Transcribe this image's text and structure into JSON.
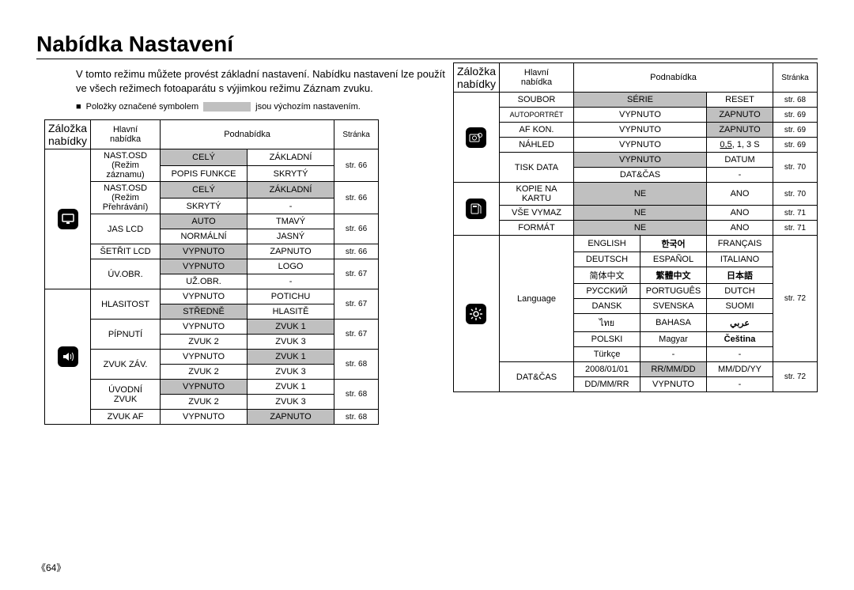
{
  "title": "Nabídka Nastavení",
  "intro": "V tomto režimu můžete provést základní nastavení. Nabídku nastavení lze použít ve všech režimech fotoaparátu s výjimkou režimu Záznam zvuku.",
  "note_pre": "Položky označené symbolem",
  "note_post": "jsou výchozím nastavením.",
  "page_num": "《64》",
  "hdr": {
    "tab": "Záložka\nnabídky",
    "main": "Hlavní\nnabídka",
    "sub": "Podnabídka",
    "page": "Stránka"
  },
  "left": {
    "icon1": "display",
    "icon2": "sound",
    "rows1": [
      {
        "m": "NAST.OSD\n(Režim\nzáznamu)",
        "rs": 2,
        "a": "CELÝ",
        "ah": true,
        "b": "ZÁKLADNÍ",
        "p": "str. 66",
        "ps": 2
      },
      {
        "a": "POPIS FUNKCE",
        "b": "SKRYTÝ"
      },
      {
        "m": "NAST.OSD\n(Režim\nPřehrávání)",
        "rs": 2,
        "a": "CELÝ",
        "ah": true,
        "b": "ZÁKLADNÍ",
        "bh": true,
        "p": "str. 66",
        "ps": 2
      },
      {
        "a": "SKRYTÝ",
        "b": "-"
      },
      {
        "m": "JAS LCD",
        "rs": 2,
        "a": "AUTO",
        "ah": true,
        "b": "TMAVÝ",
        "p": "str. 66",
        "ps": 2
      },
      {
        "a": "NORMÁLNÍ",
        "b": "JASNÝ"
      },
      {
        "m": "ŠETŘIT LCD",
        "rs": 1,
        "a": "VYPNUTO",
        "ah": true,
        "b": "ZAPNUTO",
        "p": "str. 66",
        "ps": 1
      },
      {
        "m": "ÚV.OBR.",
        "rs": 2,
        "a": "VYPNUTO",
        "ah": true,
        "b": "LOGO",
        "p": "str. 67",
        "ps": 2
      },
      {
        "a": "UŽ.OBR.",
        "b": "-"
      }
    ],
    "rows2": [
      {
        "m": "HLASITOST",
        "rs": 2,
        "a": "VYPNUTO",
        "b": "POTICHU",
        "p": "str. 67",
        "ps": 2
      },
      {
        "a": "STŘEDNĚ",
        "ah": true,
        "b": "HLASITĚ"
      },
      {
        "m": "PÍPNUTÍ",
        "rs": 2,
        "a": "VYPNUTO",
        "b": "ZVUK 1",
        "bh": true,
        "p": "str. 67",
        "ps": 2
      },
      {
        "a": "ZVUK 2",
        "b": "ZVUK 3"
      },
      {
        "m": "ZVUK ZÁV.",
        "rs": 2,
        "a": "VYPNUTO",
        "b": "ZVUK 1",
        "bh": true,
        "p": "str. 68",
        "ps": 2
      },
      {
        "a": "ZVUK 2",
        "b": "ZVUK 3"
      },
      {
        "m": "ÚVODNÍ\nZVUK",
        "rs": 2,
        "a": "VYPNUTO",
        "ah": true,
        "b": "ZVUK 1",
        "p": "str. 68",
        "ps": 2
      },
      {
        "a": "ZVUK 2",
        "b": "ZVUK 3"
      },
      {
        "m": "ZVUK AF",
        "rs": 1,
        "a": "VYPNUTO",
        "b": "ZAPNUTO",
        "bh": true,
        "p": "str. 68",
        "ps": 1
      }
    ]
  },
  "right": {
    "icon1": "camera-gear",
    "icon2": "card",
    "icon3": "gear",
    "g1": [
      {
        "m": "SOUBOR",
        "a": "SÉRIE",
        "ah": true,
        "cs2": true,
        "b": "RESET",
        "p": "str. 68"
      },
      {
        "m": "AUTOPORTRÉT",
        "fs": 9,
        "a": "VYPNUTO",
        "cs2": true,
        "b": "ZAPNUTO",
        "bh": true,
        "p": "str. 69"
      },
      {
        "m": "AF KON.",
        "a": "VYPNUTO",
        "cs2": true,
        "b": "ZAPNUTO",
        "bh": true,
        "p": "str. 69"
      },
      {
        "m": "NÁHLED",
        "a": "VYPNUTO",
        "cs2": true,
        "b": "0,5, 1, 3 S",
        "bpre": "0,5",
        "p": "str. 69"
      },
      {
        "m": "TISK DATA",
        "rs": 2,
        "a": "VYPNUTO",
        "ah": true,
        "cs2": true,
        "b": "DATUM",
        "p": "str. 70",
        "ps": 2
      },
      {
        "a": "DAT&ČAS",
        "cs2": true,
        "b": "-"
      }
    ],
    "g2": [
      {
        "m": "KOPIE NA\nKARTU",
        "a": "NE",
        "ah": true,
        "cs2": true,
        "b": "ANO",
        "p": "str. 70"
      },
      {
        "m": "VŠE VYMAZ",
        "a": "NE",
        "ah": true,
        "cs2": true,
        "b": "ANO",
        "p": "str. 71"
      },
      {
        "m": "FORMÁT",
        "a": "NE",
        "ah": true,
        "cs2": true,
        "b": "ANO",
        "p": "str. 71"
      }
    ],
    "g3": [
      {
        "m": "Language",
        "rs": 8,
        "a": "ENGLISH",
        "b": "한국어",
        "bb": true,
        "c": "FRANÇAIS",
        "p": "str. 72",
        "ps": 8
      },
      {
        "a": "DEUTSCH",
        "b": "ESPAÑOL",
        "c": "ITALIANO"
      },
      {
        "a": "简体中文",
        "b": "繁體中文",
        "bb": true,
        "c": "日本語",
        "cb": true
      },
      {
        "a": "РУССКИЙ",
        "b": "PORTUGUÊS",
        "c": "DUTCH"
      },
      {
        "a": "DANSK",
        "b": "SVENSKA",
        "c": "SUOMI"
      },
      {
        "a": "ไทย",
        "b": "BAHASA",
        "c": "عربي",
        "cb": true
      },
      {
        "a": "POLSKI",
        "b": "Magyar",
        "c": "Čeština",
        "cb": true
      },
      {
        "a": "Türkçe",
        "b": "-",
        "c": "-"
      },
      {
        "m": "DAT&ČAS",
        "rs": 2,
        "a": "2008/01/01",
        "b": "RR/MM/DD",
        "bh": true,
        "c": "MM/DD/YY",
        "p": "str. 72",
        "ps": 2
      },
      {
        "a": "DD/MM/RR",
        "b": "VYPNUTO",
        "c": "-"
      }
    ]
  }
}
